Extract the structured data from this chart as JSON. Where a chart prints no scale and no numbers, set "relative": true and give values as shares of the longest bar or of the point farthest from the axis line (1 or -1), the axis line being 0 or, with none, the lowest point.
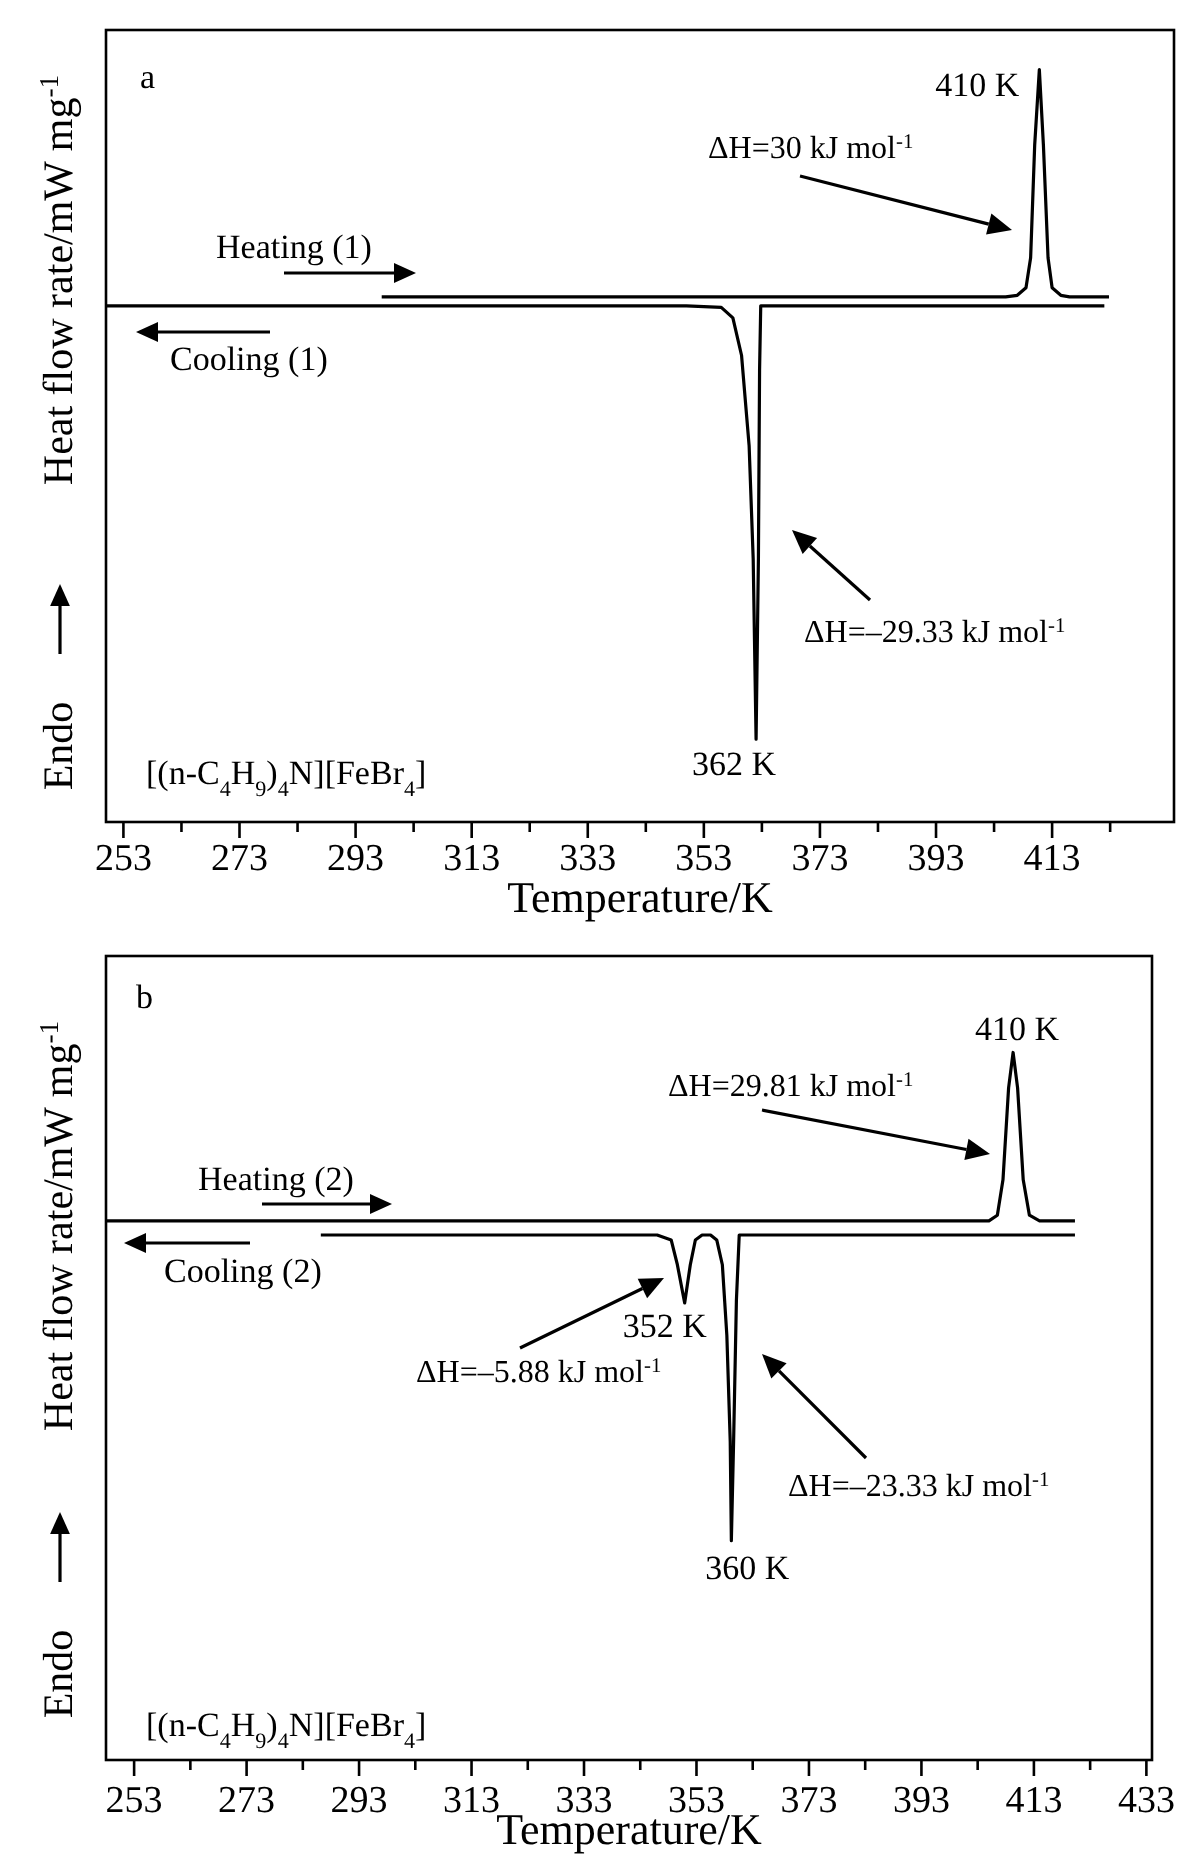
{
  "chart_data": [
    {
      "type": "line",
      "relative": true,
      "xlabel": "Temperature/K",
      "ylabel": "Heat flow rate/mW mg$^{-1}$",
      "legend": "left",
      "tick_labels": "x",
      "xlim": [
        250,
        434
      ],
      "xticks": [
        253,
        {
          "value": 263,
          "label": null
        },
        273,
        {
          "value": 283,
          "label": null
        },
        293,
        {
          "value": 303,
          "label": null
        },
        313,
        {
          "value": 323,
          "label": null
        },
        333,
        {
          "value": 343,
          "label": null
        },
        353,
        {
          "value": 363,
          "label": null
        },
        373,
        {
          "value": 383,
          "label": null
        },
        393,
        {
          "value": 403,
          "label": null
        },
        413,
        {
          "value": 423,
          "label": null
        }
      ],
      "series": [
        {
          "name": "Heating (1)",
          "color": "#000000",
          "x": [
            297.5,
            405,
            407,
            408.5,
            409.3,
            410,
            410.8,
            411.5,
            412.3,
            413,
            414.5,
            416,
            422.8
          ],
          "values": [
            0.698,
            0.698,
            0.7,
            0.71,
            0.75,
            0.9,
            1,
            0.9,
            0.75,
            0.71,
            0.7,
            0.698,
            0.698
          ]
        },
        {
          "name": "Cooling (1)",
          "color": "#000000",
          "x": [
            250,
            350,
            356,
            358,
            359.5,
            360.8,
            361.5,
            362,
            362.4,
            362.6,
            362.8,
            422
          ],
          "values": [
            0.686,
            0.686,
            0.684,
            0.67,
            0.62,
            0.5,
            0.35,
            0.11,
            0.35,
            0.6,
            0.686,
            0.686
          ]
        }
      ],
      "annotations": [
        "a",
        "[(n-C$_{4}$H$_{9}$)$_{4}$N][FeBr$_{4}$]",
        "Endo",
        {
          "text": "410 K",
          "x": 410.8,
          "y": 1
        },
        {
          "text": "362 K",
          "x": 362,
          "y": 0.11
        },
        "ΔH=30 kJ mol$^{-1}$",
        "ΔH=–29.33 kJ mol$^{-1}$"
      ]
    },
    {
      "type": "line",
      "relative": true,
      "xlabel": "Temperature/K",
      "ylabel": "Heat flow rate/mW mg$^{-1}$",
      "legend": "left",
      "tick_labels": "x",
      "xlim": [
        248,
        434
      ],
      "xticks": [
        253,
        {
          "value": 263,
          "label": null
        },
        273,
        {
          "value": 283,
          "label": null
        },
        293,
        {
          "value": 303,
          "label": null
        },
        313,
        {
          "value": 323,
          "label": null
        },
        333,
        {
          "value": 343,
          "label": null
        },
        353,
        {
          "value": 363,
          "label": null
        },
        373,
        {
          "value": 383,
          "label": null
        },
        393,
        {
          "value": 403,
          "label": null
        },
        413,
        {
          "value": 423,
          "label": null
        },
        433
      ],
      "series": [
        {
          "name": "Heating (2)",
          "color": "#000000",
          "x": [
            248,
            400,
            405,
            406.5,
            407.5,
            408.5,
            409.3,
            410.1,
            411.1,
            412.2,
            414,
            420.3
          ],
          "values": [
            0.762,
            0.762,
            0.762,
            0.77,
            0.82,
            0.95,
            1,
            0.95,
            0.82,
            0.77,
            0.762,
            0.762
          ]
        },
        {
          "name": "Cooling (2)",
          "color": "#000000",
          "x": [
            286.2,
            346,
            348.5,
            349.6,
            350.9,
            351.9,
            352.8,
            354,
            355.5,
            356.6,
            357.6,
            358.4,
            359,
            359.2,
            359.6,
            360.1,
            360.6,
            420.3
          ],
          "values": [
            0.742,
            0.742,
            0.735,
            0.7,
            0.646,
            0.7,
            0.735,
            0.742,
            0.742,
            0.735,
            0.7,
            0.6,
            0.45,
            0.31,
            0.45,
            0.65,
            0.742,
            0.742
          ]
        }
      ],
      "annotations": [
        "b",
        "[(n-C$_{4}$H$_{9}$)$_{4}$N][FeBr$_{4}$]",
        "Endo",
        {
          "text": "410 K",
          "x": 409.3,
          "y": 1
        },
        {
          "text": "352 K",
          "x": 350.9,
          "y": 0.646
        },
        {
          "text": "360 K",
          "x": 359.2,
          "y": 0.31
        },
        "ΔH=29.81 kJ mol$^{-1}$",
        "ΔH=–5.88 kJ mol$^{-1}$",
        "ΔH=–23.33 kJ mol$^{-1}$"
      ]
    }
  ]
}
